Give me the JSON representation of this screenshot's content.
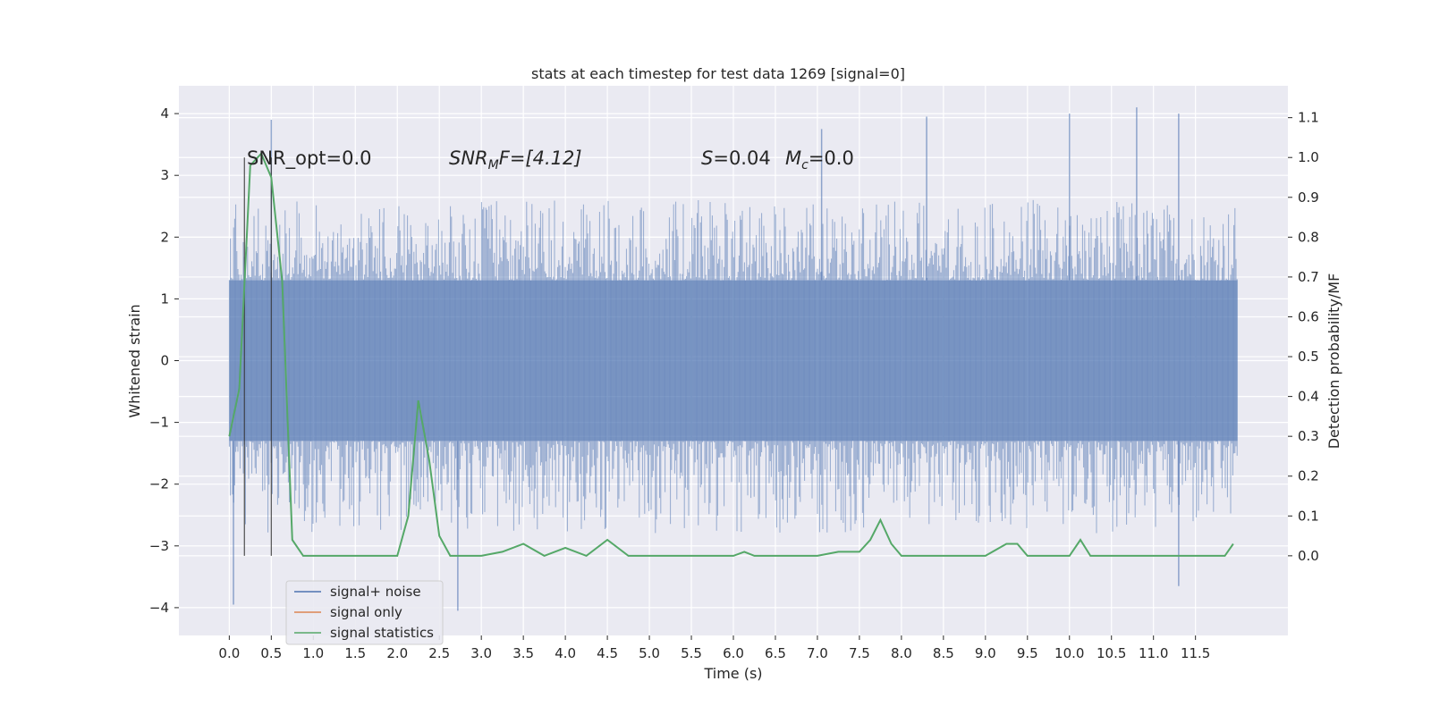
{
  "chart_data": {
    "type": "line",
    "title": "stats at each timestep for test data 1269 [signal=0]",
    "xlabel": "Time (s)",
    "ylabel_left": "Whitened strain",
    "ylabel_right": "Detection probability/MF",
    "xlim": [
      -0.6,
      12.6
    ],
    "ylim_left": [
      -4.45,
      4.45
    ],
    "ylim_right": [
      -0.2,
      1.18
    ],
    "x_ticks": [
      "0.0",
      "0.5",
      "1.0",
      "1.5",
      "2.0",
      "2.5",
      "3.0",
      "3.5",
      "4.0",
      "4.5",
      "5.0",
      "5.5",
      "6.0",
      "6.5",
      "7.0",
      "7.5",
      "8.0",
      "8.5",
      "9.0",
      "9.5",
      "10.0",
      "10.5",
      "11.0",
      "11.5"
    ],
    "y_ticks_left": [
      "4",
      "3",
      "2",
      "1",
      "0",
      "−1",
      "−2",
      "−3",
      "−4"
    ],
    "y_ticks_right": [
      "1.1",
      "1.0",
      "0.9",
      "0.8",
      "0.7",
      "0.6",
      "0.5",
      "0.4",
      "0.3",
      "0.2",
      "0.1",
      "0.0"
    ],
    "grid": true,
    "legend_position": "lower-left",
    "annotations": {
      "snr_opt": "SNR_opt=0.0",
      "snr_mf_main": "SNR",
      "snr_mf_sub": "M",
      "snr_mf_rest": "F=[4.12]",
      "s_main": "S",
      "s_rest": "=0.04",
      "mc_main": "M",
      "mc_sub": "c",
      "mc_rest": "=0.0"
    },
    "vertical_markers_x": [
      0.18,
      0.5
    ],
    "series": [
      {
        "name": "signal+ noise",
        "color": "#4c72b0",
        "axis": "left",
        "x_range": [
          0.0,
          12.0
        ],
        "envelope": {
          "core_band": [
            -1.3,
            1.3
          ],
          "typical_peaks": [
            2.6,
            -2.8
          ],
          "extremes": [
            {
              "x": 0.05,
              "y": -3.95
            },
            {
              "x": 0.5,
              "y": 3.9
            },
            {
              "x": 2.72,
              "y": -4.05
            },
            {
              "x": 7.05,
              "y": 3.75
            },
            {
              "x": 8.3,
              "y": 3.95
            },
            {
              "x": 10.0,
              "y": 4.0
            },
            {
              "x": 10.8,
              "y": 4.1
            },
            {
              "x": 11.3,
              "y": 4.0
            },
            {
              "x": 11.3,
              "y": -3.65
            }
          ]
        }
      },
      {
        "name": "signal only",
        "color": "#dd8452",
        "axis": "left",
        "values": []
      },
      {
        "name": "signal statistics",
        "color": "#55a868",
        "axis": "right",
        "x": [
          0.0,
          0.12,
          0.25,
          0.38,
          0.5,
          0.63,
          0.75,
          0.88,
          1.0,
          1.5,
          2.0,
          2.13,
          2.25,
          2.38,
          2.5,
          2.63,
          3.0,
          3.25,
          3.5,
          3.75,
          4.0,
          4.25,
          4.5,
          4.75,
          5.0,
          5.5,
          6.0,
          6.13,
          6.25,
          7.0,
          7.25,
          7.5,
          7.63,
          7.75,
          7.88,
          8.0,
          8.5,
          9.0,
          9.25,
          9.38,
          9.5,
          9.75,
          10.0,
          10.13,
          10.25,
          10.5,
          11.0,
          11.5,
          11.85,
          11.95
        ],
        "values": [
          0.3,
          0.42,
          0.98,
          1.01,
          0.95,
          0.69,
          0.04,
          0.0,
          0.0,
          0.0,
          0.0,
          0.1,
          0.39,
          0.24,
          0.05,
          0.0,
          0.0,
          0.01,
          0.03,
          0.0,
          0.02,
          0.0,
          0.04,
          0.0,
          0.0,
          0.0,
          0.0,
          0.01,
          0.0,
          0.0,
          0.01,
          0.01,
          0.04,
          0.09,
          0.03,
          0.0,
          0.0,
          0.0,
          0.03,
          0.03,
          0.0,
          0.0,
          0.0,
          0.04,
          0.0,
          0.0,
          0.0,
          0.0,
          0.0,
          0.03
        ]
      }
    ]
  }
}
